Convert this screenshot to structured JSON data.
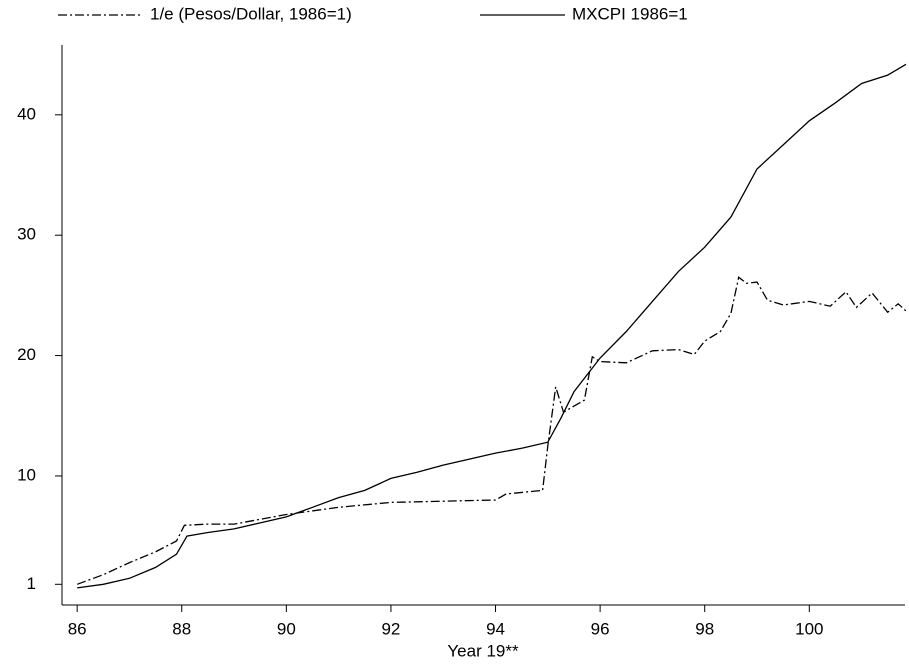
{
  "chart_data": {
    "type": "line",
    "xlabel": "Year 19**",
    "xlim": [
      85.71,
      101.83
    ],
    "xticks": [
      86,
      88,
      90,
      92,
      94,
      96,
      98,
      100
    ],
    "ylim": [
      -0.72,
      45.8
    ],
    "yticks": [
      1,
      10,
      20,
      30,
      40
    ],
    "series": [
      {
        "name": "1/e (Pesos/Dollar, 1986=1)",
        "color": "#000000",
        "line_style": "dashdot",
        "x": [
          86,
          86.5,
          87,
          87.5,
          87.9,
          88.05,
          88.5,
          89,
          90,
          91,
          92,
          93,
          94,
          94.2,
          94.9,
          95.0,
          95.15,
          95.3,
          95.5,
          95.7,
          95.85,
          96,
          96.5,
          97,
          97.5,
          97.8,
          98,
          98.3,
          98.5,
          98.65,
          98.8,
          99,
          99.2,
          99.5,
          100,
          100.4,
          100.7,
          100.9,
          101.2,
          101.5,
          101.7,
          101.85
        ],
        "values": [
          1.0,
          1.8,
          2.8,
          3.7,
          4.6,
          5.9,
          6.0,
          6.0,
          6.8,
          7.4,
          7.8,
          7.9,
          8.0,
          8.5,
          8.8,
          12.5,
          17.4,
          15.3,
          15.8,
          16.3,
          19.9,
          19.5,
          19.4,
          20.4,
          20.5,
          20.1,
          21.2,
          22.0,
          23.5,
          26.5,
          26.0,
          26.1,
          24.6,
          24.2,
          24.5,
          24.1,
          25.3,
          24.0,
          25.2,
          23.6,
          24.3,
          23.7
        ]
      },
      {
        "name": "MXCPI 1986=1",
        "color": "#000000",
        "line_style": "solid",
        "x": [
          86,
          86.5,
          87,
          87.5,
          87.9,
          88.1,
          88.5,
          89,
          89.5,
          90,
          90.5,
          91,
          91.5,
          92,
          92.5,
          93,
          93.5,
          94,
          94.5,
          95,
          95.25,
          95.5,
          96,
          96.5,
          97,
          97.5,
          98,
          98.5,
          99,
          99.5,
          100,
          100.5,
          101,
          101.5,
          101.85
        ],
        "values": [
          0.7,
          1.0,
          1.5,
          2.4,
          3.5,
          5.0,
          5.3,
          5.6,
          6.1,
          6.6,
          7.4,
          8.2,
          8.8,
          9.8,
          10.3,
          10.9,
          11.4,
          11.9,
          12.3,
          12.8,
          14.8,
          17.0,
          19.8,
          22.0,
          24.5,
          27.0,
          29.0,
          31.5,
          35.5,
          37.5,
          39.5,
          41.0,
          42.6,
          43.3,
          44.2
        ]
      }
    ]
  }
}
